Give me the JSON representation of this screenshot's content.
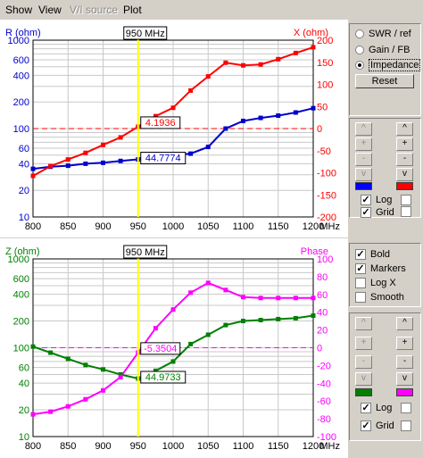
{
  "menu": {
    "show": "Show",
    "view": "View",
    "vi_source": "V/I source",
    "plot": "Plot"
  },
  "x_ticks": [
    "800",
    "850",
    "900",
    "950",
    "1000",
    "1050",
    "1100",
    "1150",
    "1200"
  ],
  "x_unit": "MHz",
  "top": {
    "left_label": "R (ohm)",
    "right_label": "X (ohm)",
    "left_ticks": [
      "1000",
      "600",
      "400",
      "200",
      "100",
      "60",
      "40",
      "20",
      "10"
    ],
    "right_ticks": [
      "200",
      "150",
      "100",
      "50",
      "0",
      "-50",
      "-100",
      "-150",
      "-200"
    ],
    "cursor_label": "950 MHz",
    "readout_right": "4.1936",
    "readout_left": "44.7774",
    "left_color": "#0000cc",
    "right_color": "#ff0000"
  },
  "bottom": {
    "left_label": "Z (ohm)",
    "right_label": "Phase",
    "left_ticks": [
      "1000",
      "600",
      "400",
      "200",
      "100",
      "60",
      "40",
      "20",
      "10"
    ],
    "right_ticks": [
      "100",
      "80",
      "60",
      "40",
      "20",
      "0",
      "-20",
      "-40",
      "-60",
      "-80",
      "-100"
    ],
    "cursor_label": "950 MHz",
    "readout_right": "-5.3504",
    "readout_left": "44.9733",
    "left_color": "#008000",
    "right_color": "#ff00ff"
  },
  "chart_data": [
    {
      "type": "line",
      "xlabel": "MHz",
      "ylabel": "R (ohm)",
      "ylabel_right": "X (ohm)",
      "xlim": [
        800,
        1200
      ],
      "ylim": [
        10,
        1000
      ],
      "y_scale": "log",
      "ylim_right": [
        -200,
        200
      ],
      "grid": true,
      "x": [
        800,
        825,
        850,
        875,
        900,
        925,
        950,
        975,
        1000,
        1025,
        1050,
        1075,
        1100,
        1125,
        1150,
        1175,
        1200
      ],
      "series": [
        {
          "name": "R (ohm)",
          "axis": "left",
          "color": "#0000cc",
          "values": [
            35,
            37,
            38,
            40,
            41,
            43,
            44.8,
            47,
            50,
            52,
            62,
            100,
            122,
            132,
            140,
            152,
            170
          ]
        },
        {
          "name": "X (ohm)",
          "axis": "right",
          "color": "#ff0000",
          "values": [
            -107,
            -85,
            -70,
            -55,
            -37,
            -20,
            4.2,
            28,
            47,
            86,
            118,
            149,
            143,
            145,
            157,
            171,
            184
          ]
        }
      ]
    },
    {
      "type": "line",
      "xlabel": "MHz",
      "ylabel": "Z (ohm)",
      "ylabel_right": "Phase",
      "xlim": [
        800,
        1200
      ],
      "ylim": [
        10,
        1000
      ],
      "y_scale": "log",
      "ylim_right": [
        -100,
        100
      ],
      "grid": true,
      "x": [
        800,
        825,
        850,
        875,
        900,
        925,
        950,
        975,
        1000,
        1025,
        1050,
        1075,
        1100,
        1125,
        1150,
        1175,
        1200
      ],
      "series": [
        {
          "name": "Z (ohm)",
          "axis": "left",
          "color": "#008000",
          "values": [
            103,
            88,
            75,
            64,
            57,
            50,
            45,
            55,
            70,
            110,
            140,
            180,
            200,
            205,
            210,
            215,
            230
          ]
        },
        {
          "name": "Phase",
          "axis": "right",
          "color": "#ff00ff",
          "values": [
            -75,
            -72,
            -66,
            -58,
            -48,
            -33,
            -5.4,
            22,
            43,
            62,
            73,
            65,
            57,
            56,
            56,
            56,
            56
          ]
        }
      ]
    }
  ],
  "panel1": {
    "swr": "SWR / ref",
    "gain": "Gain / FB",
    "impedance": "Impedance",
    "reset": "Reset",
    "selected": "impedance"
  },
  "controls1": {
    "log": "Log",
    "grid": "Grid",
    "log_checked": true,
    "grid_checked": true,
    "left_swatch": "#0000ff",
    "right_swatch": "#ff0000"
  },
  "options": {
    "bold": "Bold",
    "markers": "Markers",
    "logx": "Log X",
    "smooth": "Smooth",
    "bold_checked": true,
    "markers_checked": true,
    "logx_checked": false,
    "smooth_checked": false
  },
  "controls2": {
    "log": "Log",
    "grid": "Grid",
    "log_checked": true,
    "grid_checked": true,
    "left_swatch": "#008000",
    "right_swatch": "#ff00ff"
  },
  "step_glyphs": {
    "up2": "^",
    "plus": "+",
    "minus": "-",
    "down2": "v"
  }
}
